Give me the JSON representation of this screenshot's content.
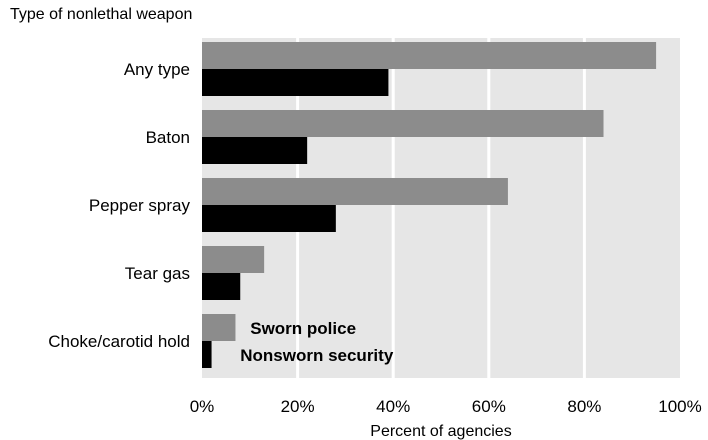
{
  "chart_data": {
    "type": "bar",
    "orientation": "horizontal",
    "title": "",
    "ylabel": "Type of nonlethal weapon",
    "xlabel": "Percent of agencies",
    "categories": [
      "Any type",
      "Baton",
      "Pepper spray",
      "Tear gas",
      "Choke/carotid hold"
    ],
    "series": [
      {
        "name": "Sworn police",
        "values": [
          95,
          84,
          64,
          13,
          7
        ],
        "color": "#8c8c8c"
      },
      {
        "name": "Nonsworn security",
        "values": [
          39,
          22,
          28,
          8,
          2
        ],
        "color": "#000000"
      }
    ],
    "xlim": [
      0,
      100
    ],
    "xticks": [
      0,
      20,
      40,
      60,
      80,
      100
    ],
    "xtick_labels": [
      "0%",
      "20%",
      "40%",
      "60%",
      "80%",
      "100%"
    ],
    "grid": true,
    "plot_background": "#e6e6e6",
    "legend_position": "inside-bottom"
  }
}
